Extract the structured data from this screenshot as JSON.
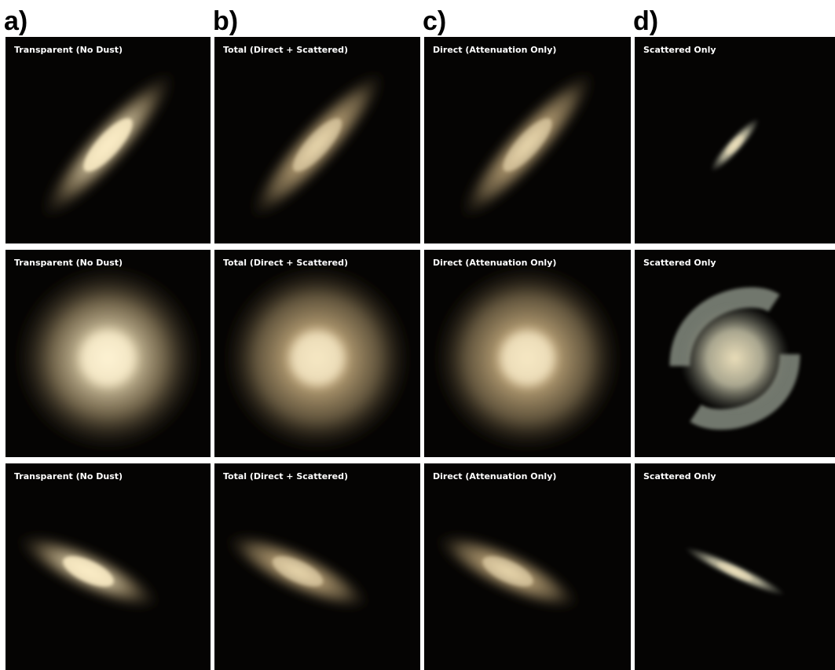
{
  "columns": [
    {
      "label": "a)"
    },
    {
      "label": "b)"
    },
    {
      "label": "c)"
    },
    {
      "label": "d)"
    }
  ],
  "rows": [
    {
      "panels": [
        {
          "title": "Transparent (No Dust)"
        },
        {
          "title": "Total (Direct + Scattered)"
        },
        {
          "title": "Direct (Attenuation Only)"
        },
        {
          "title": "Scattered Only"
        }
      ]
    },
    {
      "panels": [
        {
          "title": "Transparent (No Dust)"
        },
        {
          "title": "Total (Direct + Scattered)"
        },
        {
          "title": "Direct (Attenuation Only)"
        },
        {
          "title": "Scattered Only"
        }
      ]
    },
    {
      "panels": [
        {
          "title": "Transparent (No Dust)"
        },
        {
          "title": "Total (Direct + Scattered)"
        },
        {
          "title": "Direct (Attenuation Only)"
        },
        {
          "title": "Scattered Only"
        }
      ]
    }
  ]
}
